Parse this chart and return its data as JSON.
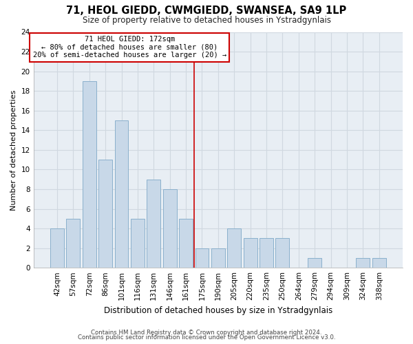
{
  "title": "71, HEOL GIEDD, CWMGIEDD, SWANSEA, SA9 1LP",
  "subtitle": "Size of property relative to detached houses in Ystradgynlais",
  "xlabel": "Distribution of detached houses by size in Ystradgynlais",
  "ylabel": "Number of detached properties",
  "bar_labels": [
    "42sqm",
    "57sqm",
    "72sqm",
    "86sqm",
    "101sqm",
    "116sqm",
    "131sqm",
    "146sqm",
    "161sqm",
    "175sqm",
    "190sqm",
    "205sqm",
    "220sqm",
    "235sqm",
    "250sqm",
    "264sqm",
    "279sqm",
    "294sqm",
    "309sqm",
    "324sqm",
    "338sqm"
  ],
  "bar_heights": [
    4,
    5,
    19,
    11,
    15,
    5,
    9,
    8,
    5,
    2,
    2,
    4,
    3,
    3,
    3,
    0,
    1,
    0,
    0,
    1,
    1
  ],
  "bar_color": "#c8d8e8",
  "bar_edge_color": "#8ab0cc",
  "annotation_line1": "71 HEOL GIEDD: 172sqm",
  "annotation_line2": "← 80% of detached houses are smaller (80)",
  "annotation_line3": "20% of semi-detached houses are larger (20) →",
  "annotation_box_edge_color": "#cc0000",
  "annotation_box_face_color": "#ffffff",
  "ref_line_color": "#cc0000",
  "ref_line_x": 8.5,
  "ylim": [
    0,
    24
  ],
  "yticks": [
    0,
    2,
    4,
    6,
    8,
    10,
    12,
    14,
    16,
    18,
    20,
    22,
    24
  ],
  "footer_line1": "Contains HM Land Registry data © Crown copyright and database right 2024.",
  "footer_line2": "Contains public sector information licensed under the Open Government Licence v3.0.",
  "grid_color": "#d0d8e0",
  "background_color": "#ffffff",
  "plot_bg_color": "#e8eef4"
}
